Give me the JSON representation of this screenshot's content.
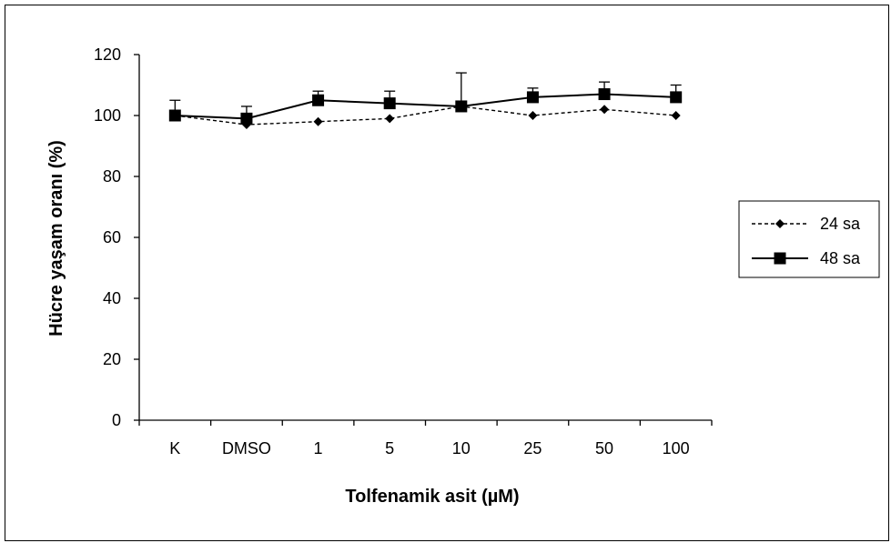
{
  "chart_data": {
    "type": "line",
    "categories": [
      "K",
      "DMSO",
      "1",
      "5",
      "10",
      "25",
      "50",
      "100"
    ],
    "xlabel": "Tolfenamik asit (µM)",
    "ylabel": "Hücre yaşam oranı (%)",
    "ylim": [
      0,
      120
    ],
    "yticks": [
      0,
      20,
      40,
      60,
      80,
      100,
      120
    ],
    "grid": false,
    "legend_position": "right",
    "series": [
      {
        "name": "24 sa",
        "marker": "diamond",
        "line_style": "dashed",
        "color": "#000000",
        "values": [
          100,
          97,
          98,
          99,
          103,
          100,
          102,
          100
        ]
      },
      {
        "name": "48 sa",
        "marker": "square",
        "line_style": "solid",
        "color": "#000000",
        "values": [
          100,
          99,
          105,
          104,
          103,
          106,
          107,
          106
        ],
        "error_upper": [
          5,
          4,
          3,
          4,
          11,
          3,
          4,
          4
        ]
      }
    ]
  }
}
